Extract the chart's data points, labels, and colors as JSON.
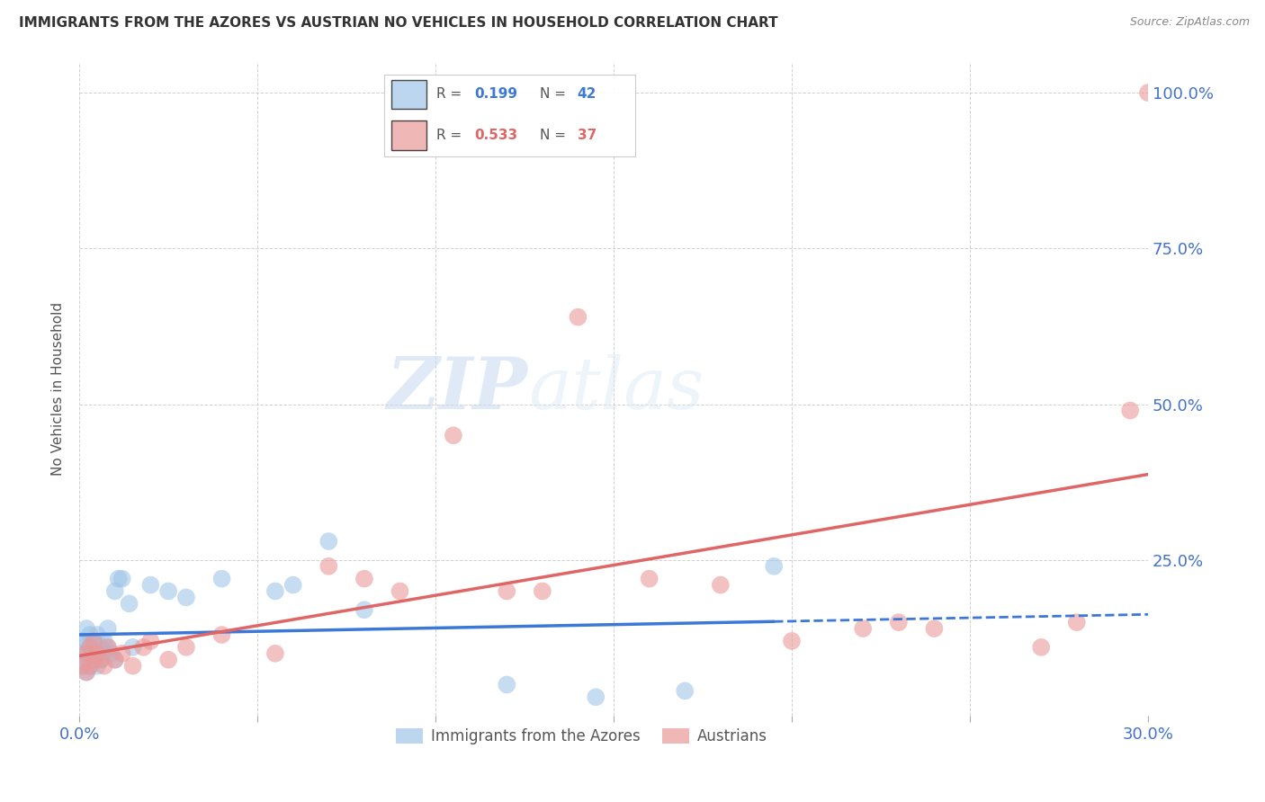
{
  "title": "IMMIGRANTS FROM THE AZORES VS AUSTRIAN NO VEHICLES IN HOUSEHOLD CORRELATION CHART",
  "source": "Source: ZipAtlas.com",
  "tick_color": "#4472c4",
  "ylabel": "No Vehicles in Household",
  "xlim": [
    0.0,
    0.3
  ],
  "ylim": [
    0.0,
    1.05
  ],
  "xticks": [
    0.0,
    0.05,
    0.1,
    0.15,
    0.2,
    0.25,
    0.3
  ],
  "yticks": [
    0.0,
    0.25,
    0.5,
    0.75,
    1.0
  ],
  "blue_color": "#9fc5e8",
  "pink_color": "#ea9999",
  "blue_line_color": "#3c78d8",
  "pink_line_color": "#e06666",
  "watermark_zip": "ZIP",
  "watermark_atlas": "atlas",
  "azores_x": [
    0.001,
    0.001,
    0.001,
    0.002,
    0.002,
    0.002,
    0.002,
    0.002,
    0.003,
    0.003,
    0.003,
    0.003,
    0.004,
    0.004,
    0.005,
    0.005,
    0.005,
    0.006,
    0.006,
    0.007,
    0.007,
    0.008,
    0.008,
    0.009,
    0.01,
    0.01,
    0.011,
    0.012,
    0.014,
    0.015,
    0.02,
    0.025,
    0.03,
    0.04,
    0.055,
    0.06,
    0.07,
    0.08,
    0.12,
    0.145,
    0.17,
    0.195
  ],
  "azores_y": [
    0.08,
    0.1,
    0.12,
    0.07,
    0.09,
    0.1,
    0.12,
    0.14,
    0.08,
    0.1,
    0.11,
    0.13,
    0.09,
    0.12,
    0.08,
    0.1,
    0.13,
    0.09,
    0.11,
    0.1,
    0.12,
    0.11,
    0.14,
    0.1,
    0.09,
    0.2,
    0.22,
    0.22,
    0.18,
    0.11,
    0.21,
    0.2,
    0.19,
    0.22,
    0.2,
    0.21,
    0.28,
    0.17,
    0.05,
    0.03,
    0.04,
    0.24
  ],
  "austrian_x": [
    0.001,
    0.002,
    0.002,
    0.003,
    0.003,
    0.004,
    0.004,
    0.005,
    0.006,
    0.007,
    0.008,
    0.01,
    0.012,
    0.015,
    0.018,
    0.02,
    0.025,
    0.03,
    0.04,
    0.055,
    0.07,
    0.08,
    0.09,
    0.105,
    0.12,
    0.13,
    0.14,
    0.16,
    0.18,
    0.2,
    0.22,
    0.23,
    0.24,
    0.27,
    0.28,
    0.295,
    0.3
  ],
  "austrian_y": [
    0.08,
    0.07,
    0.1,
    0.08,
    0.11,
    0.09,
    0.12,
    0.1,
    0.09,
    0.08,
    0.11,
    0.09,
    0.1,
    0.08,
    0.11,
    0.12,
    0.09,
    0.11,
    0.13,
    0.1,
    0.24,
    0.22,
    0.2,
    0.45,
    0.2,
    0.2,
    0.64,
    0.22,
    0.21,
    0.12,
    0.14,
    0.15,
    0.14,
    0.11,
    0.15,
    0.49,
    1.0
  ]
}
